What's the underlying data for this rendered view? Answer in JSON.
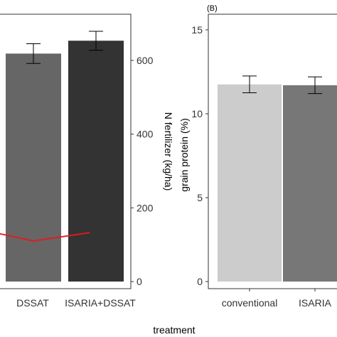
{
  "figure": {
    "xlabel": "treatment"
  },
  "chart_data": [
    {
      "panel": "A",
      "type": "bar",
      "categories": [
        "DSSAT",
        "ISARIA+DSSAT"
      ],
      "series": [
        {
          "values": [
            621,
            655
          ],
          "errors": [
            26,
            25
          ],
          "colors": [
            "#666666",
            "#333333"
          ]
        },
        {
          "kind": "line",
          "color": "#e31a1c",
          "points": [
            [
              -0.9,
              158
            ],
            [
              0,
              126
            ],
            [
              0.9,
              148
            ]
          ]
        }
      ],
      "ylabel_right": "N fertilizer (kg/ha)",
      "ylim": [
        0,
        725
      ],
      "yticks": [
        "0",
        "200",
        "400",
        "600"
      ],
      "grid": false
    },
    {
      "panel": "B",
      "title": "(B)",
      "type": "bar",
      "categories": [
        "conventional",
        "ISARIA"
      ],
      "series": [
        {
          "values": [
            11.75,
            11.7
          ],
          "errors": [
            0.5,
            0.5
          ],
          "colors": [
            "#cccccc",
            "#777777"
          ]
        }
      ],
      "ylabel": "grain protein (%)",
      "ylim": [
        0,
        16.3
      ],
      "yticks": [
        "0",
        "5",
        "10",
        "15"
      ],
      "grid": false
    }
  ]
}
